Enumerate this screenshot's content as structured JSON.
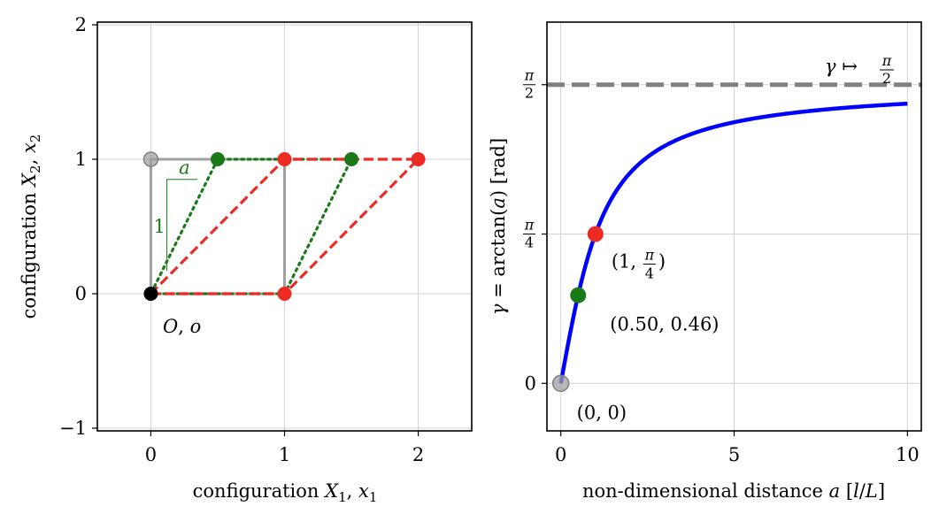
{
  "chart_data": [
    {
      "type": "scatter",
      "panel": "left",
      "xlabel": "configuration X1, x1",
      "ylabel": "configuration X2, x2",
      "xlim": [
        -0.4,
        2.4
      ],
      "ylim": [
        -1.02,
        2.02
      ],
      "xticks": [
        0,
        1,
        2
      ],
      "yticks": [
        -1,
        0,
        1,
        2
      ],
      "grid": true,
      "shapes": [
        {
          "name": "reference-square",
          "style": "solid",
          "color": "#a0a0a0",
          "points": [
            [
              0,
              0
            ],
            [
              1,
              0
            ],
            [
              1,
              1
            ],
            [
              0,
              1
            ],
            [
              0,
              0
            ]
          ]
        },
        {
          "name": "shear-a-0.5",
          "style": "dotted",
          "color": "#1a7a1a",
          "points": [
            [
              0,
              0
            ],
            [
              1,
              0
            ],
            [
              1.5,
              1
            ],
            [
              0.5,
              1
            ],
            [
              0,
              0
            ]
          ]
        },
        {
          "name": "shear-a-1",
          "style": "dashed",
          "color": "#ee2a24",
          "points": [
            [
              0,
              0
            ],
            [
              1,
              0
            ],
            [
              2,
              1
            ],
            [
              1,
              1
            ],
            [
              0,
              0
            ]
          ]
        }
      ],
      "points": [
        {
          "x": 0,
          "y": 1,
          "color": "#a0a0a0"
        },
        {
          "x": 0.5,
          "y": 1,
          "color": "#1a7a1a"
        },
        {
          "x": 1.5,
          "y": 1,
          "color": "#1a7a1a"
        },
        {
          "x": 1,
          "y": 1,
          "color": "#ee2a24"
        },
        {
          "x": 2,
          "y": 1,
          "color": "#ee2a24"
        },
        {
          "x": 1,
          "y": 0,
          "color": "#ee2a24"
        },
        {
          "x": 0,
          "y": 0,
          "color": "#000000"
        }
      ],
      "annotations": {
        "origin": "O, o",
        "slope_run": "1",
        "slope_rise": "a"
      }
    },
    {
      "type": "line",
      "panel": "right",
      "xlabel": "non-dimensional distance a [l/L]",
      "ylabel": "γ = arctan(a) [rad]",
      "xlim": [
        -0.4,
        10.4
      ],
      "ylim": [
        -0.25,
        1.9
      ],
      "xticks": [
        0,
        5,
        10
      ],
      "yticks": [
        {
          "value": 0,
          "label": "0"
        },
        {
          "value": 0.7853981634,
          "label": "π/4"
        },
        {
          "value": 1.5707963268,
          "label": "π/2"
        }
      ],
      "grid": true,
      "series": [
        {
          "function": "arctan",
          "x_range": [
            0,
            10
          ],
          "color": "#0000ff"
        }
      ],
      "asymptote": {
        "y": 1.5707963268,
        "label": "γ ↦ π/2",
        "color": "#808080"
      },
      "points": [
        {
          "x": 0,
          "y": 0,
          "color": "#a0a0a0",
          "label": "(0, 0)"
        },
        {
          "x": 0.5,
          "y": 0.4636,
          "color": "#1a7a1a",
          "label": "(0.50, 0.46)"
        },
        {
          "x": 1,
          "y": 0.7854,
          "color": "#ee2a24",
          "label": "(1, π/4)"
        }
      ]
    }
  ]
}
